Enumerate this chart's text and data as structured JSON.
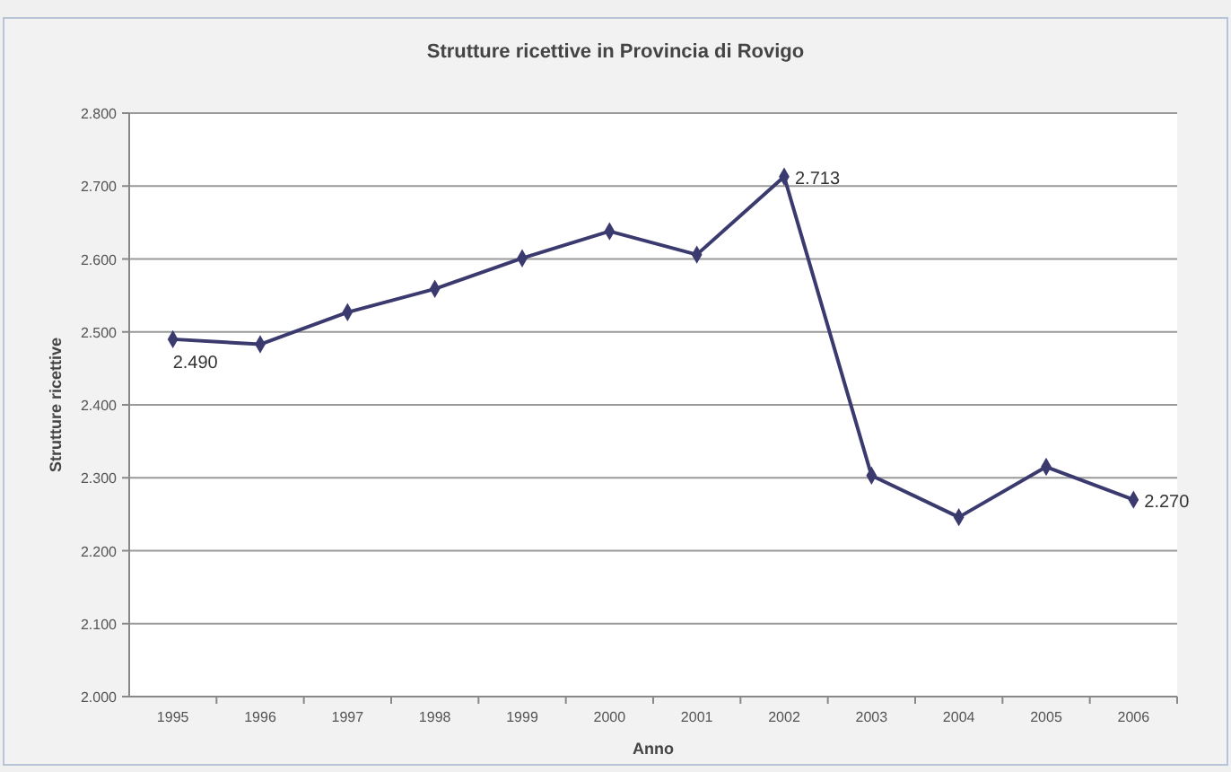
{
  "chart_data": {
    "type": "line",
    "title": "Strutture ricettive in Provincia di Rovigo",
    "xlabel": "Anno",
    "ylabel": "Strutture ricettive",
    "categories": [
      "1995",
      "1996",
      "1997",
      "1998",
      "1999",
      "2000",
      "2001",
      "2002",
      "2003",
      "2004",
      "2005",
      "2006"
    ],
    "series": [
      {
        "color": "#3b3a6e",
        "values": [
          2490,
          2483,
          2527,
          2559,
          2601,
          2638,
          2606,
          2713,
          2303,
          2246,
          2315,
          2270
        ],
        "value_labels": [
          "2.490",
          null,
          null,
          null,
          null,
          null,
          null,
          "2.713",
          null,
          null,
          null,
          "2.270"
        ]
      }
    ],
    "ylim": [
      2000,
      2800
    ],
    "yticks": [
      {
        "value": 2000,
        "label": "2.000"
      },
      {
        "value": 2100,
        "label": "2.100"
      },
      {
        "value": 2200,
        "label": "2.200"
      },
      {
        "value": 2300,
        "label": "2.300"
      },
      {
        "value": 2400,
        "label": "2.400"
      },
      {
        "value": 2500,
        "label": "2.500"
      },
      {
        "value": 2600,
        "label": "2.600"
      },
      {
        "value": 2700,
        "label": "2.700"
      },
      {
        "value": 2800,
        "label": "2.800"
      }
    ],
    "grid": "y",
    "marker": "diamond",
    "line_style": "solid"
  }
}
